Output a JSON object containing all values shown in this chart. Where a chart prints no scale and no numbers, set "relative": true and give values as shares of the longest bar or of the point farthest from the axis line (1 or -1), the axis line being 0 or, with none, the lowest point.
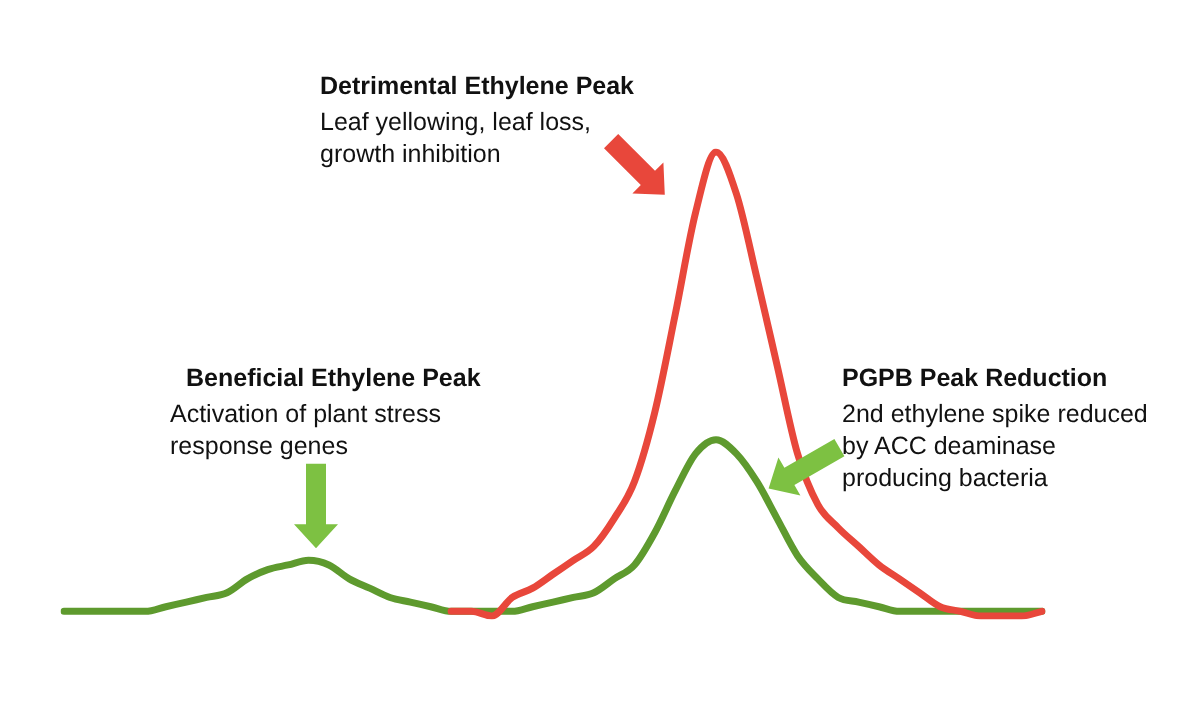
{
  "chart_data": {
    "type": "line",
    "relative": true,
    "legend": false,
    "grid": false,
    "marker": "none",
    "line_style": "solid",
    "categories": [
      null,
      null,
      null,
      null,
      null,
      null,
      null,
      null,
      null,
      null,
      null,
      null,
      null,
      null,
      null,
      null,
      null,
      null,
      null,
      null,
      null,
      null,
      null,
      null,
      null,
      null,
      null,
      null,
      null,
      null,
      null,
      null,
      null,
      null,
      null,
      null,
      null,
      null,
      null,
      null,
      null,
      null,
      null,
      null,
      null,
      null,
      null,
      null,
      null
    ],
    "series": [
      {
        "color": "#e8473b",
        "values": [
          null,
          null,
          null,
          null,
          null,
          null,
          null,
          null,
          null,
          null,
          null,
          null,
          null,
          null,
          null,
          null,
          null,
          null,
          null,
          0.01,
          0.01,
          0,
          0.04,
          0.06,
          0.09,
          0.12,
          0.15,
          0.21,
          0.29,
          0.44,
          0.65,
          0.87,
          1,
          0.91,
          0.73,
          0.54,
          0.35,
          0.24,
          0.19,
          0.15,
          0.11,
          0.08,
          0.05,
          0.02,
          0.01,
          0,
          0,
          0,
          0.01
        ]
      },
      {
        "color": "#5e9a2e",
        "values": [
          0.01,
          0.01,
          0.01,
          0.01,
          0.01,
          0.02,
          0.03,
          0.04,
          0.05,
          0.08,
          0.1,
          0.11,
          0.12,
          0.11,
          0.08,
          0.06,
          0.04,
          0.03,
          0.02,
          0.01,
          0.01,
          0.01,
          0.01,
          0.02,
          0.03,
          0.04,
          0.05,
          0.08,
          0.11,
          0.18,
          0.27,
          0.35,
          0.38,
          0.35,
          0.29,
          0.21,
          0.13,
          0.08,
          0.04,
          0.03,
          0.02,
          0.01,
          0.01,
          0.01,
          0.01,
          0.01,
          0.01,
          0.01,
          0.01
        ]
      }
    ],
    "annotations": [
      "Detrimental Ethylene Peak",
      "Leaf yellowing, leaf loss, growth inhibition",
      "Beneficial Ethylene Peak",
      "Activation of plant stress response genes",
      "PGPB Peak Reduction",
      "2nd ethylene spike reduced by ACC deaminase producing bacteria"
    ]
  }
}
